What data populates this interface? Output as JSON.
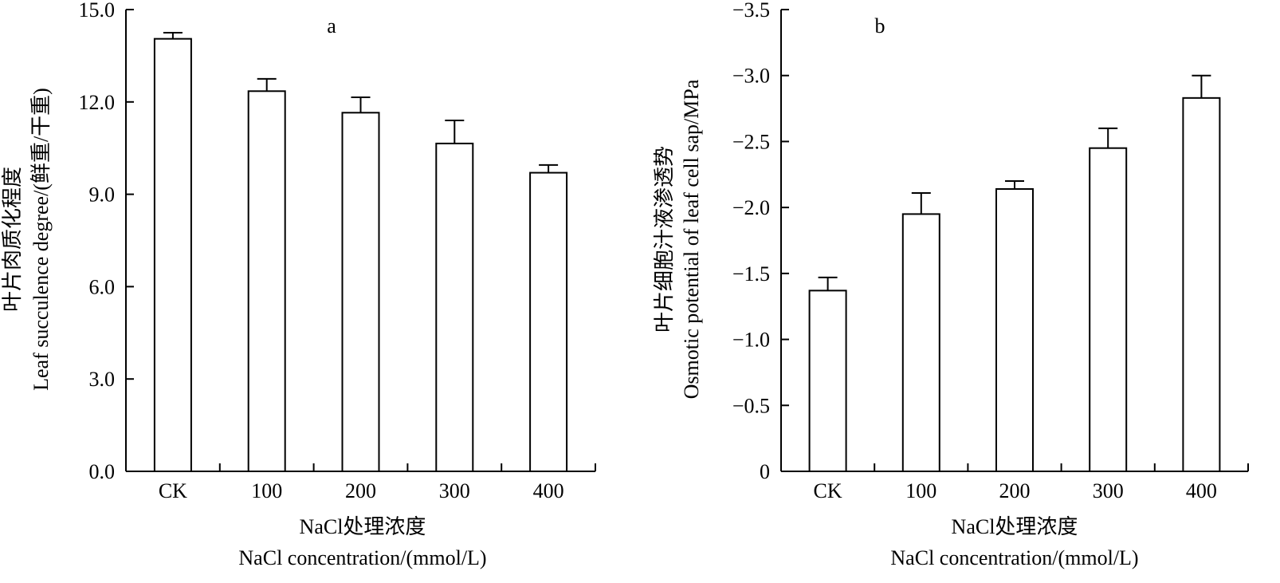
{
  "chart_data": [
    {
      "type": "bar",
      "panel_label": "a",
      "categories": [
        "CK",
        "100",
        "200",
        "300",
        "400"
      ],
      "values": [
        14.05,
        12.35,
        11.65,
        10.65,
        9.7
      ],
      "errors": [
        0.2,
        0.4,
        0.5,
        0.75,
        0.25
      ],
      "ylim": [
        0,
        15
      ],
      "yticks": [
        0,
        3,
        6,
        9,
        12,
        15
      ],
      "ytick_labels": [
        "0.0",
        "3.0",
        "6.0",
        "9.0",
        "12.0",
        "15.0"
      ],
      "ylabel_zh": "叶片肉质化程度",
      "ylabel_en": "Leaf succulence degree/(鲜重/干重)",
      "xlabel_zh": "NaCl处理浓度",
      "xlabel_en": "NaCl concentration/(mmol/L)"
    },
    {
      "type": "bar",
      "panel_label": "b",
      "categories": [
        "CK",
        "100",
        "200",
        "300",
        "400"
      ],
      "values": [
        -1.37,
        -1.95,
        -2.14,
        -2.45,
        -2.83
      ],
      "errors": [
        0.1,
        0.16,
        0.06,
        0.15,
        0.17
      ],
      "ylim": [
        0,
        -3.5
      ],
      "yticks": [
        0,
        -0.5,
        -1.0,
        -1.5,
        -2.0,
        -2.5,
        -3.0,
        -3.5
      ],
      "ytick_labels": [
        "0",
        "−0.5",
        "−1.0",
        "−1.5",
        "−2.0",
        "−2.5",
        "−3.0",
        "−3.5"
      ],
      "ylabel_zh": "叶片细胞汁液渗透势",
      "ylabel_en": "Osmotic potential of leaf cell sap/MPa",
      "xlabel_zh": "NaCl处理浓度",
      "xlabel_en": "NaCl concentration/(mmol/L)"
    }
  ]
}
